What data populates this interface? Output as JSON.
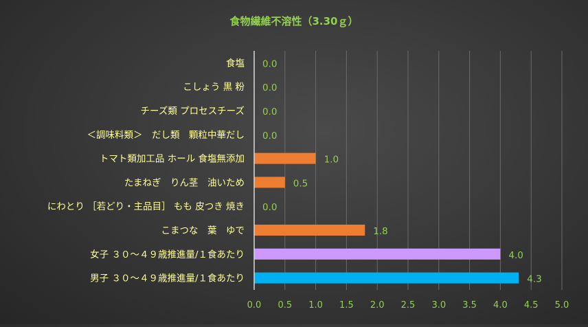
{
  "chart_data": {
    "type": "bar",
    "orientation": "horizontal",
    "title": "食物繊維不溶性（3.30ｇ）",
    "categories": [
      "食塩",
      "こしょう 黒 粉",
      "チーズ類 プロセスチーズ",
      "＜調味料類＞　だし類　顆粒中華だし",
      "トマト類加工品 ホール 食塩無添加",
      "たまねぎ　りん茎　油いため",
      "にわとり ［若どり・主品目］ もも 皮つき 焼き",
      "こまつな　葉　ゆで",
      "女子 ３０～４９歳推進量/１食あたり",
      "男子 ３０～４９歳推進量/１食あたり"
    ],
    "values": [
      0.0,
      0.0,
      0.0,
      0.0,
      1.0,
      0.5,
      0.0,
      1.8,
      4.0,
      4.3
    ],
    "value_labels": [
      "0.0",
      "0.0",
      "0.0",
      "0.0",
      "1.0",
      "0.5",
      "0.0",
      "1.8",
      "4.0",
      "4.3"
    ],
    "bar_colors": [
      "#ED7D31",
      "#ED7D31",
      "#ED7D31",
      "#ED7D31",
      "#ED7D31",
      "#ED7D31",
      "#ED7D31",
      "#ED7D31",
      "#CC99FF",
      "#00B0F0"
    ],
    "xlim": [
      0,
      5
    ],
    "x_ticks": [
      "0.0",
      "0.5",
      "1.0",
      "1.5",
      "2.0",
      "2.5",
      "3.0",
      "3.5",
      "4.0",
      "4.5",
      "5.0"
    ],
    "grid": "vertical",
    "legend": "none",
    "colors": {
      "title": "#92D050",
      "category_label": "#FFFF99",
      "value_label": "#92D050",
      "tick_label": "#92D050",
      "gridline": "#6a6a6a",
      "axis_line": "#d9d9d9"
    }
  }
}
